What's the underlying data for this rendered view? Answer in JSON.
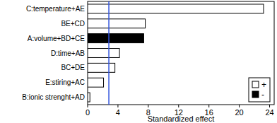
{
  "chart_data": {
    "type": "bar",
    "orientation": "horizontal",
    "x_label": "Standardized effect",
    "categories": [
      "C:temperature+AE",
      "BE+CD",
      "A:volume+BD+CE",
      "D:time+AB",
      "BC+DE",
      "E:stiring+AC",
      "B:ionic strenght+AD"
    ],
    "values": [
      23.2,
      7.6,
      7.4,
      4.2,
      3.6,
      2.1,
      0.3
    ],
    "colors": [
      "#ffffff",
      "#ffffff",
      "#000000",
      "#ffffff",
      "#ffffff",
      "#ffffff",
      "#ffffff"
    ],
    "threshold": 2.8,
    "xlim": [
      0,
      24.6
    ],
    "xticks": [
      0,
      4,
      8,
      12,
      16,
      20,
      24
    ],
    "legend": "bottom right",
    "legend_entries": [
      {
        "name": "+",
        "color": "#ffffff"
      },
      {
        "name": "-",
        "color": "#000000"
      }
    ]
  }
}
